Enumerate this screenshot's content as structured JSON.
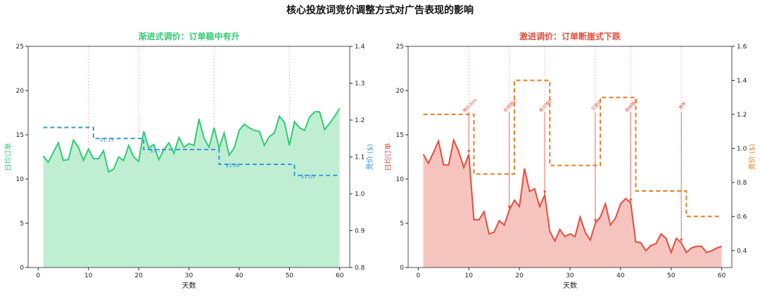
{
  "suptitle": "核心投放词竞价调整方式对广告表现的影响",
  "chart_data": [
    {
      "type": "line",
      "title": "渐进式调价：订单稳中有升",
      "xlabel": "天数",
      "ylabel": "日均订单",
      "y2label": "竞价 ($)",
      "xlim": [
        -2,
        62
      ],
      "ylim": [
        0,
        25
      ],
      "y2lim": [
        0.8,
        1.4
      ],
      "xticks": [
        0,
        10,
        20,
        30,
        40,
        50,
        60
      ],
      "yticks": [
        0,
        5,
        10,
        15,
        20,
        25
      ],
      "y2ticks": [
        0.8,
        0.9,
        1.0,
        1.1,
        1.2,
        1.3,
        1.4
      ],
      "y2ticklabels": [
        "0.8",
        "0.9",
        "1.0",
        "1.1",
        "1.2",
        "1.3",
        "1.4"
      ],
      "color": "#2ecc71",
      "fill": "#c0eed3",
      "price_color": "#3498db",
      "vlines": [
        10,
        20,
        35,
        50
      ],
      "orders": [
        12.6,
        11.9,
        13,
        14.1,
        12.1,
        12.2,
        14.4,
        13.6,
        12.1,
        13.4,
        12.3,
        12.3,
        13.2,
        10.8,
        11.1,
        12.5,
        12.1,
        13.8,
        12.5,
        12,
        15.4,
        13.5,
        13.9,
        12.2,
        13.3,
        14.1,
        12.9,
        14.7,
        13.6,
        14,
        13.8,
        16.8,
        14.6,
        13.6,
        15.8,
        13.5,
        15.2,
        12.7,
        13.5,
        15.5,
        16.2,
        15.8,
        15.5,
        15.4,
        13.8,
        14.8,
        15.2,
        17.1,
        16.4,
        13.8,
        16.5,
        15.8,
        15.5,
        17,
        17.6,
        17.6,
        15.6,
        16.3,
        17.1,
        18
      ],
      "price_steps": [
        [
          1,
          11,
          1.18
        ],
        [
          11,
          21,
          1.15
        ],
        [
          21,
          36,
          1.12
        ],
        [
          36,
          51,
          1.08
        ],
        [
          51,
          60,
          1.05
        ]
      ],
      "price_labels": [
        {
          "day": 12,
          "price": 1.15,
          "text": "$1.15"
        },
        {
          "day": 22,
          "price": 1.12,
          "text": "$1.12"
        },
        {
          "day": 37,
          "price": 1.08,
          "text": "$1.08"
        },
        {
          "day": 52,
          "price": 1.05,
          "text": "$1.05"
        }
      ]
    },
    {
      "type": "line",
      "title": "激进调价：订单断崖式下跌",
      "xlabel": "天数",
      "ylabel": "日均订单",
      "y2label": "竞价 ($)",
      "xlim": [
        -2,
        62
      ],
      "ylim": [
        0,
        25
      ],
      "y2lim": [
        0.3,
        1.6
      ],
      "xticks": [
        0,
        10,
        20,
        30,
        40,
        50,
        60
      ],
      "yticks": [
        0,
        5,
        10,
        15,
        20,
        25
      ],
      "y2ticks": [
        0.4,
        0.6,
        0.8,
        1.0,
        1.2,
        1.4,
        1.6
      ],
      "y2ticklabels": [
        "0.4",
        "0.6",
        "0.8",
        "1.0",
        "1.2",
        "1.4",
        "1.6"
      ],
      "color": "#e74c3c",
      "fill": "#f6c4bf",
      "price_color": "#e67e22",
      "vlines": [
        10,
        18,
        25,
        35,
        42,
        52
      ],
      "orders": [
        12.8,
        11.8,
        13,
        14.3,
        11.6,
        11.6,
        14.4,
        13.1,
        11.3,
        12.8,
        5.4,
        5.4,
        6.3,
        3.8,
        4,
        5.3,
        4.8,
        6.5,
        7.6,
        6.9,
        11.2,
        8.6,
        8.9,
        6.9,
        8.2,
        4.1,
        3,
        4.3,
        3.5,
        3.8,
        3.5,
        5.7,
        4,
        3.1,
        5,
        5.7,
        7.2,
        4.8,
        5.6,
        7.2,
        7.8,
        7.3,
        2.9,
        2.8,
        1.9,
        2.5,
        2.7,
        3.8,
        3.3,
        1.7,
        3.3,
        2.8,
        1.7,
        2.2,
        2.4,
        2.4,
        1.7,
        1.9,
        2.2,
        2.4
      ],
      "price_steps": [
        [
          1,
          11,
          1.2
        ],
        [
          11,
          19,
          0.85
        ],
        [
          19,
          26,
          1.4
        ],
        [
          26,
          36,
          0.9
        ],
        [
          36,
          43,
          1.3
        ],
        [
          43,
          53,
          0.75
        ],
        [
          53,
          60,
          0.6
        ]
      ],
      "events": [
        {
          "day": 10,
          "text": "降价30%"
        },
        {
          "day": 18,
          "text": "恐慌提价"
        },
        {
          "day": 25,
          "text": "再次降价"
        },
        {
          "day": 35,
          "text": "又提价"
        },
        {
          "day": 42,
          "text": "继续降价"
        },
        {
          "day": 52,
          "text": "放弃"
        }
      ]
    }
  ]
}
